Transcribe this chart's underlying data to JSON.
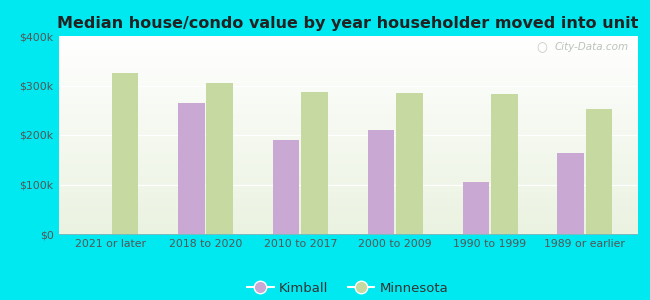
{
  "title": "Median house/condo value by year householder moved into unit",
  "categories": [
    "2021 or later",
    "2018 to 2020",
    "2010 to 2017",
    "2000 to 2009",
    "1990 to 1999",
    "1989 or earlier"
  ],
  "kimball_values": [
    null,
    265000,
    190000,
    210000,
    105000,
    163000
  ],
  "minnesota_values": [
    325000,
    305000,
    287000,
    285000,
    282000,
    253000
  ],
  "kimball_color": "#c9a8d4",
  "minnesota_color": "#c5d9a0",
  "background_color": "#00e8f0",
  "ylim": [
    0,
    400000
  ],
  "yticks": [
    0,
    100000,
    200000,
    300000,
    400000
  ],
  "ytick_labels": [
    "$0",
    "$100k",
    "$200k",
    "$300k",
    "$400k"
  ],
  "bar_width": 0.28,
  "bar_gap": 0.02,
  "watermark": "City-Data.com",
  "legend_labels": [
    "Kimball",
    "Minnesota"
  ],
  "title_fontsize": 11.5,
  "tick_fontsize": 7.8,
  "legend_fontsize": 9.5
}
